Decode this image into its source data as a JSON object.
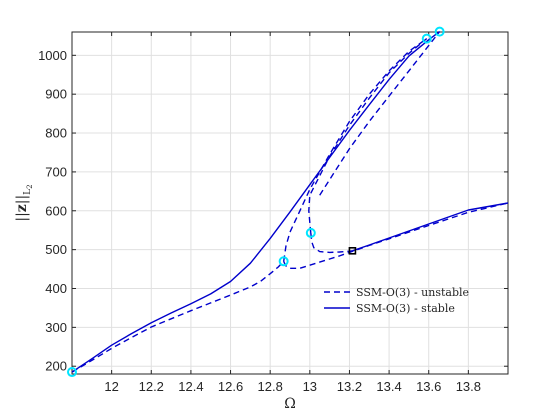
{
  "chart_data": {
    "type": "line",
    "title": "",
    "xlabel": "Ω",
    "ylabel": "||z||L2",
    "xlim": [
      11.8,
      14.0
    ],
    "ylim": [
      180,
      1060
    ],
    "grid": true,
    "legend_position": "lower-right",
    "x_ticks": [
      12,
      12.2,
      12.4,
      12.6,
      12.8,
      13,
      13.2,
      13.4,
      13.6,
      13.8
    ],
    "x_tick_labels": [
      "12",
      "12.2",
      "12.4",
      "12.6",
      "12.8",
      "13",
      "13.2",
      "13.4",
      "13.6",
      "13.8"
    ],
    "y_ticks": [
      200,
      300,
      400,
      500,
      600,
      700,
      800,
      900,
      1000
    ],
    "y_tick_labels": [
      "200",
      "300",
      "400",
      "500",
      "600",
      "700",
      "800",
      "900",
      "1000"
    ],
    "series": [
      {
        "name": "SSM-O(3) - unstable",
        "style": "dashed",
        "color": "#0000cc",
        "segments": [
          {
            "x": [
              11.8,
              11.9,
              12.0,
              12.1,
              12.2,
              12.3,
              12.4,
              12.5,
              12.6,
              12.7,
              12.75,
              12.8,
              12.84,
              12.868
            ],
            "y": [
              185,
              215,
              246,
              274,
              301,
              322,
              343,
              363,
              383,
              404,
              418,
              438,
              455,
              470
            ]
          },
          {
            "x": [
              12.868,
              12.872,
              12.88,
              12.9,
              12.95,
              13.0,
              13.05,
              13.1,
              13.15,
              13.2,
              13.3,
              13.4,
              13.5,
              13.6,
              13.7,
              13.8,
              14.0
            ],
            "y": [
              470,
              465,
              458,
              452,
              452,
              460,
              468,
              476,
              484,
              493,
              511,
              528,
              545,
              562,
              579,
              596,
              620
            ]
          },
          {
            "x": [
              12.868,
              12.88,
              12.9,
              12.95,
              13.0,
              13.05,
              13.1,
              13.2,
              13.3,
              13.4,
              13.5,
              13.59
            ],
            "y": [
              470,
              510,
              545,
              600,
              655,
              700,
              745,
              830,
              900,
              960,
              1010,
              1043
            ]
          },
          {
            "x": [
              13.005,
              13.0,
              12.995,
              13.0,
              13.05,
              13.1,
              13.2,
              13.3,
              13.4,
              13.5,
              13.59
            ],
            "y": [
              543,
              570,
              600,
              640,
              690,
              740,
              820,
              890,
              955,
              1005,
              1043
            ]
          },
          {
            "x": [
              13.005,
              13.01,
              13.02,
              13.05,
              13.1,
              13.15,
              13.2,
              13.215
            ],
            "y": [
              543,
              520,
              505,
              495,
              493,
              494,
              496,
              497
            ]
          },
          {
            "x": [
              13.05,
              13.1,
              13.2,
              13.3,
              13.4,
              13.5,
              13.6,
              13.655
            ],
            "y": [
              640,
              680,
              760,
              830,
              895,
              960,
              1025,
              1061
            ]
          }
        ]
      },
      {
        "name": "SSM-O(3) - stable",
        "style": "solid",
        "color": "#0000cc",
        "segments": [
          {
            "x": [
              11.8,
              11.9,
              12.0,
              12.1,
              12.2,
              12.3,
              12.4,
              12.5,
              12.6,
              12.7,
              12.8,
              12.9,
              13.0,
              13.1,
              13.2,
              13.3,
              13.4,
              13.5,
              13.6,
              13.655
            ],
            "y": [
              185,
              219,
              254,
              284,
              312,
              337,
              361,
              386,
              418,
              465,
              529,
              597,
              667,
              737,
              807,
              873,
              938,
              998,
              1040,
              1061
            ]
          },
          {
            "x": [
              13.215,
              13.3,
              13.4,
              13.5,
              13.6,
              13.7,
              13.8,
              13.9,
              14.0
            ],
            "y": [
              497,
              512,
              530,
              548,
              566,
              584,
              602,
              611,
              620
            ]
          }
        ]
      }
    ],
    "bifurcation_points": [
      {
        "x": 11.8,
        "y": 185
      },
      {
        "x": 12.868,
        "y": 470
      },
      {
        "x": 13.005,
        "y": 543
      },
      {
        "x": 13.59,
        "y": 1043
      },
      {
        "x": 13.655,
        "y": 1061
      }
    ],
    "special_point": {
      "x": 13.215,
      "y": 497
    },
    "colors": {
      "curve": "#0000cc",
      "bifurcation_marker": "#00e5ff",
      "special_marker": "#000000",
      "grid": "#e0e0e0"
    }
  }
}
